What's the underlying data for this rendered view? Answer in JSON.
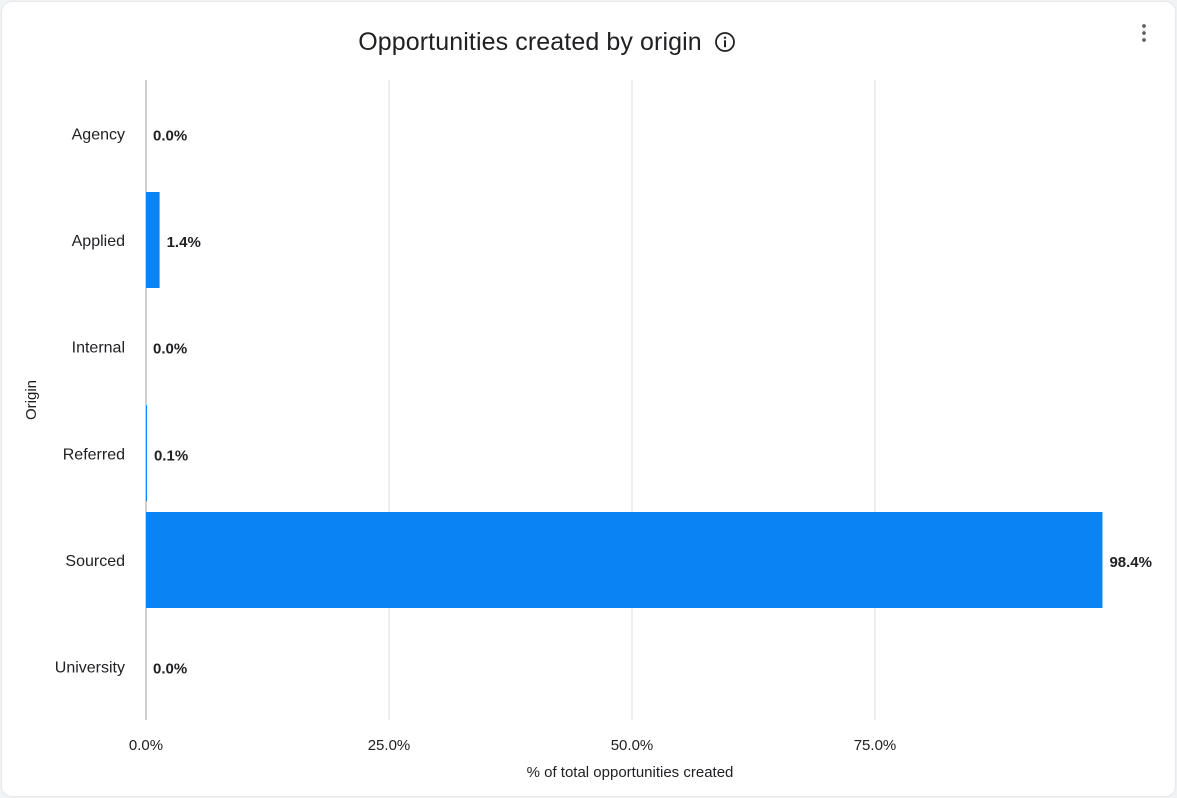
{
  "card": {
    "title": "Opportunities created by origin",
    "info_icon": "info-circle-icon",
    "menu_icon": "more-vert-icon"
  },
  "chart_data": {
    "type": "bar",
    "orientation": "horizontal",
    "title": "Opportunities created by origin",
    "xlabel": "% of total opportunities created",
    "ylabel": "Origin",
    "categories": [
      "Agency",
      "Applied",
      "Internal",
      "Referred",
      "Sourced",
      "University"
    ],
    "values": [
      0.0,
      1.4,
      0.0,
      0.1,
      98.4,
      0.0
    ],
    "value_labels": [
      "0.0%",
      "1.4%",
      "0.0%",
      "0.1%",
      "98.4%",
      "0.0%"
    ],
    "xticks": [
      0,
      25,
      50,
      75
    ],
    "xtick_labels": [
      "0.0%",
      "25.0%",
      "50.0%",
      "75.0%"
    ],
    "xlim": [
      0,
      100
    ],
    "grid": true,
    "bar_color": "#0a84f5",
    "grid_color": "#dadce0"
  }
}
